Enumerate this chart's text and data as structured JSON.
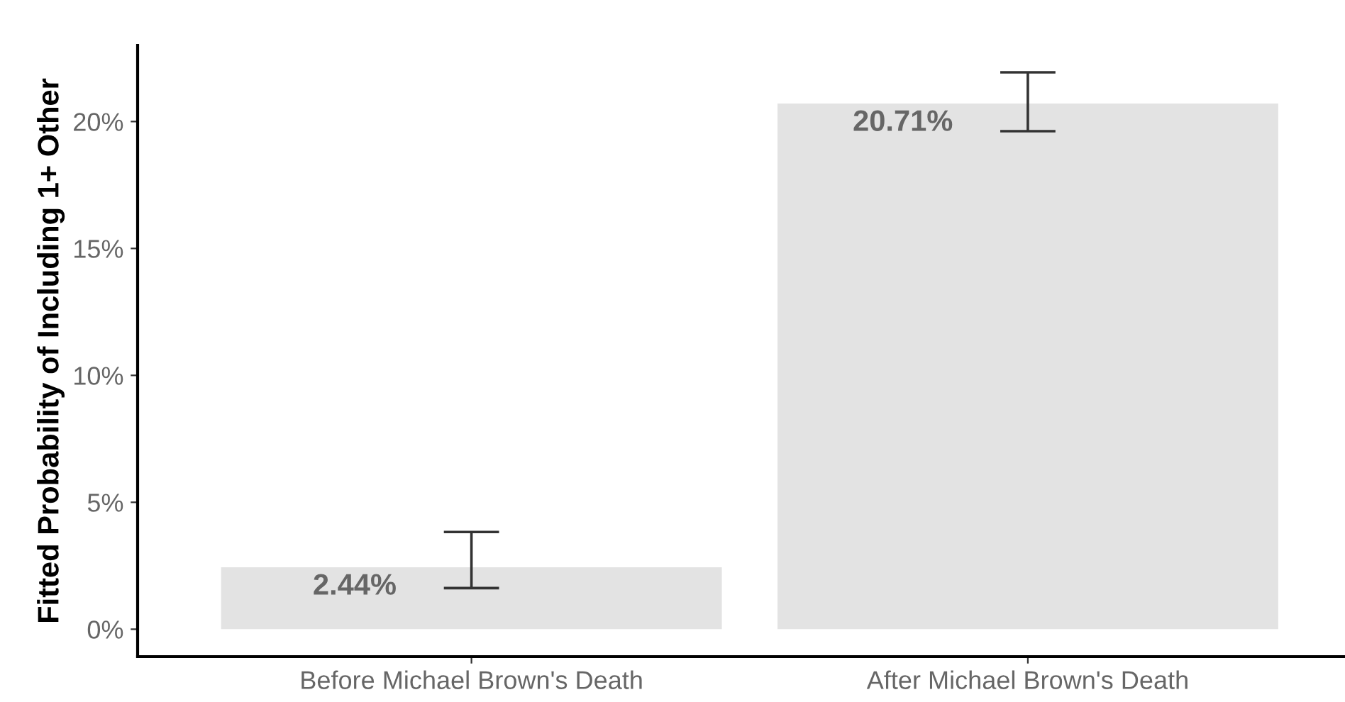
{
  "chart_data": {
    "type": "bar",
    "ylabel": "Fitted Probability of Including 1+ Other",
    "categories": [
      "Before Michael Brown's Death",
      "After Michael Brown's Death"
    ],
    "values": [
      2.44,
      20.71
    ],
    "errors": [
      [
        1.62,
        3.83
      ],
      [
        19.62,
        21.94
      ]
    ],
    "value_labels": [
      "2.44%",
      "20.71%"
    ],
    "color": "#e3e3e3",
    "ylim": [
      -1.08,
      23.0
    ],
    "yticks": [
      {
        "value": 0,
        "label": "0%"
      },
      {
        "value": 5,
        "label": "5%"
      },
      {
        "value": 10,
        "label": "10%"
      },
      {
        "value": 15,
        "label": "15%"
      },
      {
        "value": 20,
        "label": "20%"
      }
    ],
    "grid": false,
    "legend": false
  }
}
